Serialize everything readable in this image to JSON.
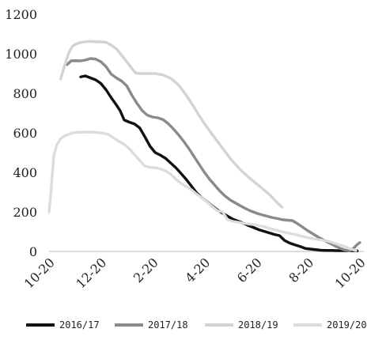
{
  "chart_data": {
    "type": "line",
    "title": "",
    "xlabel": "",
    "ylabel": "",
    "ylim": [
      0,
      1200
    ],
    "xlim": [
      0,
      12.4
    ],
    "y_ticks": [
      0,
      200,
      400,
      600,
      800,
      1000,
      1200
    ],
    "y_tick_labels": [
      "0",
      "200",
      "400",
      "600",
      "800",
      "1000",
      "1200"
    ],
    "x_ticks": [
      0,
      2,
      4,
      6,
      8,
      10,
      12
    ],
    "x_tick_labels": [
      "10-20",
      "12-20",
      "2-20",
      "4-20",
      "6-20",
      "8-20",
      "10-20"
    ],
    "grid": false,
    "legend_position": "bottom",
    "series": [
      {
        "name": "2016/17",
        "color": "#111111",
        "width": 3.4,
        "points": [
          [
            1.22,
            883
          ],
          [
            1.4,
            888
          ],
          [
            1.6,
            878
          ],
          [
            1.8,
            868
          ],
          [
            2.0,
            850
          ],
          [
            2.2,
            818
          ],
          [
            2.4,
            778
          ],
          [
            2.6,
            741
          ],
          [
            2.75,
            711
          ],
          [
            2.9,
            665
          ],
          [
            3.1,
            654
          ],
          [
            3.3,
            645
          ],
          [
            3.5,
            625
          ],
          [
            3.7,
            580
          ],
          [
            3.9,
            532
          ],
          [
            4.1,
            500
          ],
          [
            4.3,
            487
          ],
          [
            4.5,
            471
          ],
          [
            4.7,
            447
          ],
          [
            4.9,
            423
          ],
          [
            5.1,
            394
          ],
          [
            5.3,
            364
          ],
          [
            5.5,
            330
          ],
          [
            5.7,
            296
          ],
          [
            5.9,
            272
          ],
          [
            6.1,
            252
          ],
          [
            6.3,
            230
          ],
          [
            6.5,
            210
          ],
          [
            6.7,
            194
          ],
          [
            6.9,
            178
          ],
          [
            7.1,
            163
          ],
          [
            7.3,
            153
          ],
          [
            7.5,
            143
          ],
          [
            7.7,
            131
          ],
          [
            7.9,
            121
          ],
          [
            8.1,
            110
          ],
          [
            8.3,
            102
          ],
          [
            8.5,
            94
          ],
          [
            8.7,
            86
          ],
          [
            8.9,
            80
          ],
          [
            9.1,
            55
          ],
          [
            9.3,
            42
          ],
          [
            9.5,
            33
          ],
          [
            9.7,
            25
          ],
          [
            9.9,
            15
          ],
          [
            10.1,
            12
          ],
          [
            10.3,
            9
          ],
          [
            10.5,
            6
          ],
          [
            10.7,
            5
          ],
          [
            10.9,
            5
          ],
          [
            11.1,
            4
          ],
          [
            11.3,
            4
          ],
          [
            11.5,
            4
          ],
          [
            11.7,
            4
          ],
          [
            11.9,
            3
          ]
        ]
      },
      {
        "name": "2017/18",
        "color": "#8a8a8a",
        "width": 3.4,
        "points": [
          [
            0.7,
            945
          ],
          [
            0.85,
            964
          ],
          [
            1.0,
            965
          ],
          [
            1.2,
            964
          ],
          [
            1.4,
            968
          ],
          [
            1.6,
            976
          ],
          [
            1.8,
            973
          ],
          [
            2.0,
            960
          ],
          [
            2.2,
            935
          ],
          [
            2.4,
            897
          ],
          [
            2.6,
            878
          ],
          [
            2.8,
            862
          ],
          [
            3.0,
            838
          ],
          [
            3.2,
            790
          ],
          [
            3.4,
            748
          ],
          [
            3.6,
            712
          ],
          [
            3.8,
            689
          ],
          [
            4.0,
            680
          ],
          [
            4.2,
            676
          ],
          [
            4.4,
            667
          ],
          [
            4.6,
            647
          ],
          [
            4.8,
            620
          ],
          [
            5.0,
            590
          ],
          [
            5.2,
            557
          ],
          [
            5.4,
            520
          ],
          [
            5.6,
            480
          ],
          [
            5.8,
            440
          ],
          [
            6.0,
            400
          ],
          [
            6.2,
            365
          ],
          [
            6.4,
            335
          ],
          [
            6.6,
            305
          ],
          [
            6.8,
            280
          ],
          [
            7.0,
            260
          ],
          [
            7.2,
            245
          ],
          [
            7.4,
            230
          ],
          [
            7.6,
            216
          ],
          [
            7.8,
            204
          ],
          [
            8.0,
            194
          ],
          [
            8.2,
            186
          ],
          [
            8.4,
            179
          ],
          [
            8.6,
            172
          ],
          [
            8.8,
            167
          ],
          [
            9.0,
            161
          ],
          [
            9.2,
            158
          ],
          [
            9.4,
            156
          ],
          [
            9.6,
            140
          ],
          [
            9.8,
            122
          ],
          [
            10.0,
            104
          ],
          [
            10.2,
            88
          ],
          [
            10.4,
            72
          ],
          [
            10.6,
            58
          ],
          [
            10.8,
            44
          ],
          [
            11.0,
            31
          ],
          [
            11.2,
            18
          ],
          [
            11.4,
            8
          ],
          [
            11.6,
            4
          ],
          [
            11.75,
            15
          ],
          [
            11.9,
            35
          ],
          [
            12.0,
            45
          ]
        ]
      },
      {
        "name": "2018/19",
        "color": "#d3d3d3",
        "width": 3.4,
        "points": [
          [
            0.45,
            873
          ],
          [
            0.6,
            940
          ],
          [
            0.75,
            1001
          ],
          [
            0.9,
            1038
          ],
          [
            1.05,
            1050
          ],
          [
            1.2,
            1056
          ],
          [
            1.4,
            1061
          ],
          [
            1.6,
            1063
          ],
          [
            1.8,
            1061
          ],
          [
            2.0,
            1060
          ],
          [
            2.2,
            1058
          ],
          [
            2.4,
            1044
          ],
          [
            2.6,
            1025
          ],
          [
            2.8,
            993
          ],
          [
            3.0,
            960
          ],
          [
            3.2,
            925
          ],
          [
            3.35,
            902
          ],
          [
            3.5,
            900
          ],
          [
            3.8,
            900
          ],
          [
            4.1,
            900
          ],
          [
            4.4,
            893
          ],
          [
            4.7,
            876
          ],
          [
            5.0,
            842
          ],
          [
            5.2,
            808
          ],
          [
            5.4,
            770
          ],
          [
            5.6,
            730
          ],
          [
            5.8,
            686
          ],
          [
            6.0,
            647
          ],
          [
            6.2,
            610
          ],
          [
            6.4,
            575
          ],
          [
            6.6,
            540
          ],
          [
            6.8,
            505
          ],
          [
            7.0,
            470
          ],
          [
            7.2,
            440
          ],
          [
            7.4,
            412
          ],
          [
            7.6,
            388
          ],
          [
            7.8,
            365
          ],
          [
            8.0,
            344
          ],
          [
            8.2,
            322
          ],
          [
            8.4,
            300
          ],
          [
            8.55,
            283
          ],
          [
            8.7,
            262
          ],
          [
            8.85,
            242
          ],
          [
            9.0,
            224
          ]
        ]
      },
      {
        "name": "2019/20",
        "color": "#dcdcdc",
        "width": 3.4,
        "points": [
          [
            0.0,
            200
          ],
          [
            0.08,
            310
          ],
          [
            0.18,
            480
          ],
          [
            0.3,
            540
          ],
          [
            0.45,
            570
          ],
          [
            0.6,
            585
          ],
          [
            0.75,
            592
          ],
          [
            0.9,
            600
          ],
          [
            1.1,
            603
          ],
          [
            1.3,
            603
          ],
          [
            1.5,
            604
          ],
          [
            1.7,
            603
          ],
          [
            1.9,
            601
          ],
          [
            2.1,
            598
          ],
          [
            2.3,
            592
          ],
          [
            2.5,
            574
          ],
          [
            2.7,
            557
          ],
          [
            2.9,
            542
          ],
          [
            3.1,
            520
          ],
          [
            3.3,
            490
          ],
          [
            3.5,
            460
          ],
          [
            3.7,
            432
          ],
          [
            3.9,
            425
          ],
          [
            4.1,
            424
          ],
          [
            4.3,
            417
          ],
          [
            4.5,
            408
          ],
          [
            4.7,
            391
          ],
          [
            4.9,
            365
          ],
          [
            5.1,
            344
          ],
          [
            5.3,
            328
          ],
          [
            5.5,
            312
          ],
          [
            5.7,
            290
          ],
          [
            5.9,
            272
          ],
          [
            6.1,
            251
          ],
          [
            6.3,
            227
          ],
          [
            6.5,
            206
          ],
          [
            6.7,
            200
          ],
          [
            6.9,
            160
          ],
          [
            7.1,
            152
          ],
          [
            7.3,
            148
          ],
          [
            7.5,
            143
          ],
          [
            7.7,
            139
          ],
          [
            7.9,
            136
          ],
          [
            8.1,
            131
          ],
          [
            8.3,
            126
          ],
          [
            8.5,
            117
          ],
          [
            8.7,
            110
          ],
          [
            8.9,
            103
          ],
          [
            9.1,
            96
          ],
          [
            9.3,
            91
          ],
          [
            9.5,
            86
          ],
          [
            9.7,
            79
          ],
          [
            9.9,
            72
          ],
          [
            10.1,
            67
          ],
          [
            10.3,
            62
          ],
          [
            10.5,
            58
          ],
          [
            10.7,
            54
          ],
          [
            10.9,
            47
          ],
          [
            11.1,
            38
          ],
          [
            11.3,
            30
          ],
          [
            11.5,
            20
          ],
          [
            11.7,
            10
          ],
          [
            11.85,
            4
          ]
        ]
      }
    ]
  }
}
